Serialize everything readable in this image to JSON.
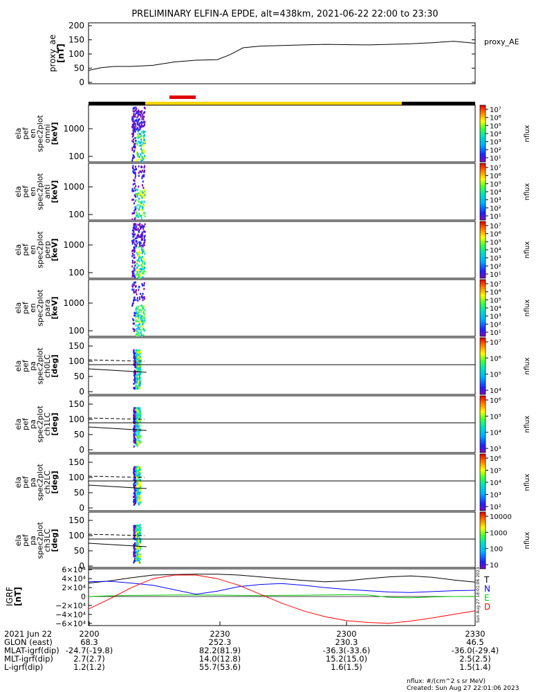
{
  "title": "PRELIMINARY ELFIN-A EPDE, alt=438km, 2021-06-22 22:00 to 23:30",
  "chart_data": [
    {
      "type": "line",
      "panel": "proxy_ae",
      "ylabel": [
        "proxy_ae",
        "[nT]"
      ],
      "legend": "proxy_AE",
      "ylim": [
        -5,
        210
      ],
      "yticks": [
        "200",
        "150",
        "100",
        "50",
        "0"
      ],
      "ytick_values": [
        200,
        150,
        100,
        50,
        0
      ],
      "x_minutes": [
        0,
        3,
        6,
        10,
        15,
        20,
        25,
        30,
        33,
        36,
        40,
        45,
        50,
        55,
        60,
        65,
        70,
        75,
        80,
        85,
        90
      ],
      "values": [
        42,
        52,
        56,
        56,
        60,
        72,
        78,
        80,
        98,
        122,
        128,
        130,
        132,
        134,
        133,
        132,
        134,
        136,
        140,
        145,
        138
      ],
      "color": "#000000"
    },
    {
      "type": "heatmap",
      "panels": [
        {
          "ylabel": [
            "ela",
            "pef",
            "en",
            "spec2plot",
            "omni",
            "[keV]"
          ],
          "yticks": [
            "1000",
            "100"
          ],
          "colorbar_max_exp": 7,
          "colorbar_min_exp": 1
        },
        {
          "ylabel": [
            "ela",
            "pef",
            "en",
            "spec2plot",
            "anti",
            "[keV]"
          ],
          "yticks": [
            "1000",
            "100"
          ],
          "colorbar_max_exp": 7,
          "colorbar_min_exp": 1
        },
        {
          "ylabel": [
            "ela",
            "pef",
            "en",
            "spec2plot",
            "perp",
            "[keV]"
          ],
          "yticks": [
            "1000",
            "100"
          ],
          "colorbar_max_exp": 7,
          "colorbar_min_exp": 1
        },
        {
          "ylabel": [
            "ela",
            "pef",
            "en",
            "spec2plot",
            "para",
            "[keV]"
          ],
          "yticks": [
            "1000",
            "100"
          ],
          "colorbar_max_exp": 7,
          "colorbar_min_exp": 1
        },
        {
          "ylabel": [
            "ela",
            "pef",
            "pa",
            "spec2plot",
            "ch0LC",
            "[deg]"
          ],
          "yticks": [
            "150",
            "100",
            "50",
            "0"
          ],
          "colorbar_labels": [
            "10⁷",
            "10⁶",
            "10⁵",
            "10⁴"
          ]
        },
        {
          "ylabel": [
            "ela",
            "pef",
            "pa",
            "spec2plot",
            "ch1LC",
            "[deg]"
          ],
          "yticks": [
            "150",
            "100",
            "50",
            "0"
          ],
          "colorbar_labels": [
            "10⁶",
            "10⁵",
            "10⁴",
            "10³"
          ]
        },
        {
          "ylabel": [
            "ela",
            "pef",
            "pa",
            "spec2plot",
            "ch2LC",
            "[deg]"
          ],
          "yticks": [
            "150",
            "100",
            "50",
            "0"
          ],
          "colorbar_labels": [
            "10⁶",
            "10⁵",
            "10⁴",
            "10³",
            "10²"
          ]
        },
        {
          "ylabel": [
            "ela",
            "pef",
            "pa",
            "spec2plot",
            "ch3LC",
            "[deg]"
          ],
          "yticks": [
            "150",
            "100",
            "50",
            "0"
          ],
          "colorbar_labels": [
            "10000",
            "1000",
            "100",
            "10"
          ]
        }
      ],
      "colorbar_label": "nflux",
      "data_time_range_minutes": [
        10,
        13
      ]
    },
    {
      "type": "line",
      "panel": "IGRF",
      "ylabel": [
        "IGRF",
        "[nT]"
      ],
      "yticks": [
        "6×10⁴",
        "4×10⁴",
        "2×10⁴",
        "0",
        "−2×10⁴",
        "−4×10⁴",
        "−6×10⁴"
      ],
      "ylim": [
        -65000,
        65000
      ],
      "series": [
        {
          "name": "T",
          "color": "#000000",
          "x_minutes": [
            0,
            5,
            10,
            15,
            20,
            25,
            30,
            35,
            40,
            45,
            50,
            55,
            60,
            65,
            70,
            75,
            80,
            85,
            90
          ],
          "values": [
            30000,
            35000,
            42000,
            48000,
            49000,
            50000,
            50000,
            48000,
            44000,
            40000,
            36000,
            33000,
            35000,
            40000,
            44000,
            46000,
            43000,
            37000,
            32000
          ]
        },
        {
          "name": "N",
          "color": "#0000ff",
          "x_minutes": [
            0,
            5,
            10,
            15,
            20,
            25,
            30,
            35,
            40,
            45,
            50,
            55,
            60,
            65,
            70,
            75,
            80,
            85,
            90
          ],
          "values": [
            33000,
            34000,
            30000,
            25000,
            15000,
            5000,
            12000,
            22000,
            27000,
            29000,
            25000,
            20000,
            16000,
            13000,
            10000,
            9000,
            11000,
            13000,
            14000
          ]
        },
        {
          "name": "E",
          "color": "#00cc00",
          "x_minutes": [
            0,
            5,
            10,
            15,
            20,
            25,
            30,
            35,
            40,
            45,
            50,
            55,
            60,
            65,
            70,
            75,
            80,
            85,
            90
          ],
          "values": [
            0,
            1500,
            2500,
            3000,
            3500,
            3500,
            3200,
            2500,
            2000,
            2500,
            3000,
            3500,
            4000,
            3500,
            -2000,
            -3000,
            -1000,
            0,
            200
          ]
        },
        {
          "name": "D",
          "color": "#ff0000",
          "x_minutes": [
            0,
            5,
            10,
            15,
            20,
            25,
            30,
            35,
            40,
            45,
            50,
            55,
            60,
            65,
            70,
            75,
            80,
            85,
            90
          ],
          "values": [
            -28000,
            -5000,
            20000,
            40000,
            48000,
            48000,
            40000,
            25000,
            5000,
            -15000,
            -32000,
            -45000,
            -54000,
            -58000,
            -60000,
            -55000,
            -48000,
            -40000,
            -32000
          ]
        }
      ],
      "side_note": "Sun Aug 27 18:01:06 2023"
    }
  ],
  "ephemeris": {
    "rows": [
      {
        "label": "2021 Jun 22",
        "values": [
          "2200",
          "2230",
          "2300",
          "2330"
        ]
      },
      {
        "label": "GLON (east)",
        "values": [
          "68.3",
          "252.3",
          "230.3",
          "46.5"
        ]
      },
      {
        "label": "MLAT-igrf(dip)",
        "values": [
          "-24.7(-19.8)",
          "82.2(81.9)",
          "-36.3(-33.6)",
          "-36.0(-29.4)"
        ]
      },
      {
        "label": "MLT-igrf(dip)",
        "values": [
          "2.7(2.7)",
          "14.0(12.8)",
          "15.2(15.0)",
          "2.5(2.5)"
        ]
      },
      {
        "label": "L-igrf(dip)",
        "values": [
          "1.2(1.2)",
          "55.7(53.6)",
          "1.6(1.5)",
          "1.5(1.4)"
        ]
      }
    ]
  },
  "footer": {
    "units": "nflux: #/(cm^2 s sr MeV)",
    "created": "Created: Sun Aug 27 22:01:06 2023"
  }
}
